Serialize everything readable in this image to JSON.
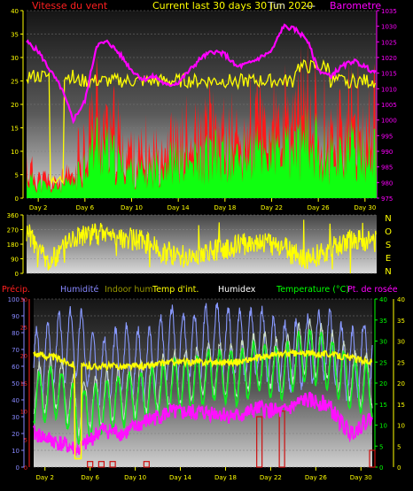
{
  "panel1": {
    "label_left": "Vitesse du vent",
    "label_center": "Current last 30 days 30 Jun 2020",
    "label_center_over": "Tim",
    "label_dashes": "---",
    "label_right": "Barometre",
    "colors": {
      "wind": "#ff2020",
      "gust": "#00ff00",
      "temp": "#ffff00",
      "baro": "#ff00ff"
    }
  },
  "panel2": {
    "compass": [
      "N",
      "O",
      "S",
      "E",
      "N"
    ]
  },
  "panel3": {
    "legend": [
      {
        "text": "Précip.",
        "color": "#ff2020"
      },
      {
        "text": "Humidité",
        "color": "#8888ff"
      },
      {
        "text": "Indoor hum",
        "color": "#999900"
      },
      {
        "text": "Temp d'int.",
        "color": "#ffff00"
      },
      {
        "text": "Humidex",
        "color": "#ffffff"
      },
      {
        "text": "Temperature (°C)",
        "color": "#00ff00"
      },
      {
        "text": "Pt. de rosée",
        "color": "#ff00ff"
      }
    ]
  },
  "chart_data": [
    {
      "type": "line",
      "title": "",
      "x_ticks": [
        "Day 2",
        "Day 6",
        "Day 10",
        "Day 14",
        "Day 18",
        "Day 22",
        "Day 26",
        "Day 30"
      ],
      "y_left": {
        "ticks": [
          0,
          5,
          10,
          15,
          20,
          25,
          30,
          35,
          40
        ],
        "ylim": [
          0,
          40
        ]
      },
      "y_right": {
        "ticks": [
          975,
          980,
          985,
          990,
          995,
          1000,
          1005,
          1010,
          1015,
          1020,
          1025,
          1030,
          1035
        ],
        "ylim": [
          975,
          1035
        ]
      },
      "series": [
        {
          "name": "Vitesse du vent",
          "axis": "left",
          "x": [
            1,
            3,
            5,
            7,
            9,
            11,
            13,
            15,
            17,
            19,
            21,
            23,
            25,
            27,
            29,
            31
          ],
          "values": [
            4,
            2,
            3,
            12,
            7,
            5,
            8,
            7,
            9,
            8,
            10,
            9,
            12,
            9,
            10,
            9
          ]
        },
        {
          "name": "Barometre",
          "axis": "right",
          "x": [
            1,
            2,
            3,
            4,
            5,
            6,
            7,
            8,
            9,
            10,
            11,
            12,
            13,
            14,
            15,
            16,
            17,
            18,
            19,
            20,
            21,
            22,
            23,
            24,
            25,
            26,
            27,
            28,
            29,
            30,
            31
          ],
          "values": [
            1025,
            1022,
            1016,
            1010,
            1000,
            1006,
            1024,
            1025,
            1021,
            1016,
            1013,
            1014,
            1011,
            1012,
            1016,
            1020,
            1022,
            1021,
            1017,
            1018,
            1020,
            1022,
            1030,
            1029,
            1026,
            1016,
            1014,
            1017,
            1019,
            1017,
            1015
          ]
        }
      ]
    },
    {
      "type": "line",
      "title": "",
      "y_left": {
        "ticks": [
          0,
          90,
          180,
          270,
          360
        ],
        "ylim": [
          0,
          360
        ]
      },
      "series": [
        {
          "name": "Direction",
          "x": [
            1,
            3,
            5,
            7,
            9,
            11,
            13,
            15,
            17,
            19,
            21,
            23,
            25,
            27,
            29,
            31
          ],
          "values": [
            250,
            60,
            230,
            250,
            230,
            200,
            120,
            100,
            140,
            170,
            200,
            160,
            80,
            150,
            210,
            200
          ]
        }
      ]
    },
    {
      "type": "line",
      "title": "",
      "x_ticks": [
        "Day 2",
        "Day 6",
        "Day 10",
        "Day 14",
        "Day 18",
        "Day 22",
        "Day 26",
        "Day 30"
      ],
      "y_left": {
        "ticks": [
          0,
          10,
          20,
          30,
          40,
          50,
          60,
          70,
          80,
          90,
          100
        ],
        "ylim": [
          0,
          100
        ]
      },
      "y_precip": {
        "ticks": [
          0,
          5,
          10,
          15,
          20,
          25,
          30
        ],
        "ylim": [
          0,
          30
        ]
      },
      "y_right": {
        "ticks": [
          0,
          5,
          10,
          15,
          20,
          25,
          30,
          35,
          40
        ],
        "ylim": [
          0,
          40
        ]
      },
      "series": [
        {
          "name": "Humidité",
          "axis": "left",
          "x": [
            1,
            3,
            5,
            7,
            9,
            11,
            13,
            15,
            17,
            19,
            21,
            23,
            25,
            27,
            29,
            31
          ],
          "values": [
            60,
            70,
            75,
            55,
            65,
            60,
            75,
            70,
            78,
            72,
            75,
            65,
            68,
            74,
            60,
            70
          ]
        },
        {
          "name": "Temp d'int.",
          "axis": "right",
          "x": [
            1,
            3,
            5,
            7,
            9,
            11,
            13,
            15,
            17,
            19,
            21,
            23,
            25,
            27,
            29,
            31
          ],
          "values": [
            27,
            26,
            24,
            24,
            24,
            24,
            25,
            25,
            25,
            25,
            26,
            27,
            27,
            27,
            26,
            25
          ]
        },
        {
          "name": "Temperature (°C)",
          "axis": "right",
          "x": [
            1,
            3,
            5,
            7,
            9,
            11,
            13,
            15,
            17,
            19,
            21,
            23,
            25,
            27,
            29,
            31
          ],
          "values": [
            16,
            18,
            12,
            14,
            16,
            17,
            19,
            20,
            22,
            21,
            24,
            22,
            27,
            25,
            20,
            18
          ]
        },
        {
          "name": "Pt. de rosée",
          "axis": "right",
          "x": [
            1,
            3,
            5,
            7,
            9,
            11,
            13,
            15,
            17,
            19,
            21,
            23,
            25,
            27,
            29,
            31
          ],
          "values": [
            8,
            6,
            4,
            9,
            8,
            11,
            13,
            13,
            13,
            12,
            14,
            13,
            16,
            15,
            8,
            12
          ]
        },
        {
          "name": "Précip.",
          "axis": "precip",
          "x": [
            6,
            7,
            8,
            11,
            21,
            23,
            31
          ],
          "values": [
            1,
            1,
            1,
            1,
            9,
            10,
            3
          ]
        }
      ]
    }
  ]
}
